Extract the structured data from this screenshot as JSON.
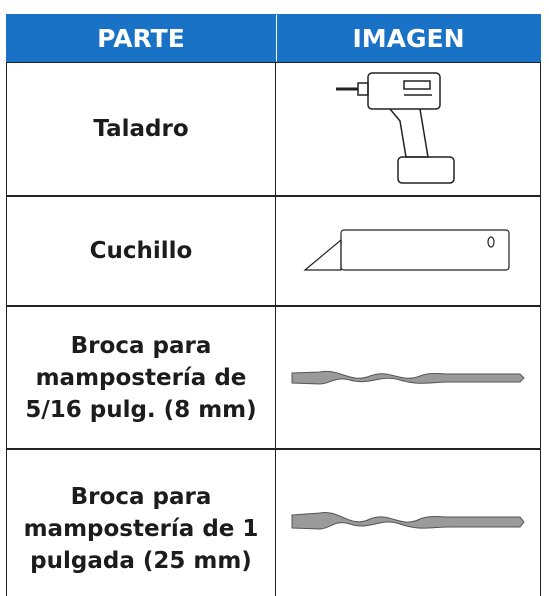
{
  "table": {
    "header": [
      "PARTE",
      "IMAGEN"
    ],
    "rows": [
      "Taladro",
      "Cuchillo",
      "Broca para mampostería de 5/16 pulg. (8 mm)",
      "Broca para mampostería de 1 pulgada (25 mm)"
    ]
  }
}
